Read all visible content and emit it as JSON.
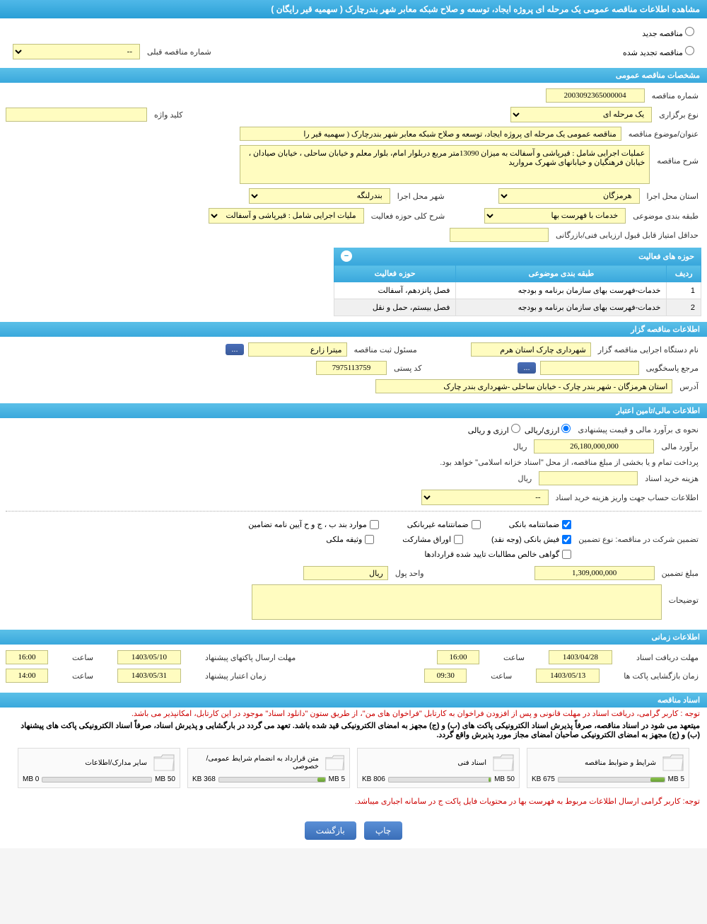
{
  "colors": {
    "header_gradient_top": "#4fb8e8",
    "header_gradient_bottom": "#2a9fd6",
    "yellow_bg": "#fffcc0",
    "yellow_border": "#c0c080",
    "red_text": "#c00",
    "btn_blue_top": "#5a8fd6",
    "btn_blue_bottom": "#3a6eb8"
  },
  "header": {
    "title": "مشاهده اطلاعات مناقصه عمومی یک مرحله ای پروژه ایجاد، توسعه و صلاح شبکه معابر شهر بندرچارک ( سهمیه قیر رایگان )"
  },
  "radio": {
    "new_tender": "مناقصه جدید",
    "renewed_tender": "مناقصه تجدید شده",
    "prev_tender_label": "شماره مناقصه قبلی",
    "prev_tender_value": "--"
  },
  "sections": {
    "general": "مشخصات مناقصه عمومی",
    "holder": "اطلاعات مناقصه گزار",
    "financial": "اطلاعات مالی/تامین اعتبار",
    "timing": "اطلاعات زمانی",
    "documents": "اسناد مناقصه"
  },
  "general": {
    "tender_no_label": "شماره مناقصه",
    "tender_no": "2003092365000004",
    "holding_type_label": "نوع برگزاری",
    "holding_type": "یک مرحله ای",
    "keyword_label": "کلید واژه",
    "keyword": "",
    "subject_label": "عنوان/موضوع مناقصه",
    "subject": "مناقصه عمومی یک مرحله ای پروژه ایجاد، توسعه و صلاح شبکه معابر شهر بندرچارک ( سهمیه قیر را",
    "desc_label": "شرح مناقصه",
    "desc": "عملیات اجرایی شامل : قیرپاشی و آسفالت به میزان 13090متر مربع دربلوار امام، بلوار معلم و خیابان ساحلی ، خیابان صیادان ، خیابان فرهنگیان و خیابانهای شهرک مروارید",
    "province_label": "استان محل اجرا",
    "province": "هرمزگان",
    "city_label": "شهر محل اجرا",
    "city": "بندرلنگه",
    "category_label": "طبقه بندی موضوعی",
    "category": "خدمات با فهرست بها",
    "activity_desc_label": "شرح کلی حوزه فعالیت",
    "activity_desc": "ملیات اجرایی شامل : قیرپاشی و آسفالت به",
    "min_score_label": "حداقل امتیاز قابل قبول ارزیابی فنی/بازرگانی",
    "min_score": ""
  },
  "activity_table": {
    "title": "حوزه های فعالیت",
    "columns": [
      "ردیف",
      "طبقه بندی موضوعی",
      "حوزه فعالیت"
    ],
    "rows": [
      [
        "1",
        "خدمات-فهرست بهای سازمان برنامه و بودجه",
        "فصل پانزدهم، آسفالت"
      ],
      [
        "2",
        "خدمات-فهرست بهای سازمان برنامه و بودجه",
        "فصل بیستم، حمل و نقل"
      ]
    ]
  },
  "holder": {
    "org_label": "نام دستگاه اجرایی مناقصه گزار",
    "org": "شهرداری چارک استان هرم",
    "registrar_label": "مسئول ثبت مناقصه",
    "registrar": "میترا زارع",
    "more_btn": "...",
    "response_label": "مرجع پاسخگویی",
    "response": "",
    "btn_dots": "...",
    "postal_label": "کد پستی",
    "postal": "7975113759",
    "address_label": "آدرس",
    "address": "استان هرمزگان - شهر بندر چارک - خیابان ساحلی -شهرداری بندر چارک"
  },
  "financial": {
    "estimate_method_label": "نحوه ی برآورد مالی و قیمت پیشنهادی",
    "currency_radio1": "ارزی/ریالی",
    "currency_radio2": "ارزی و ریالی",
    "estimate_label": "برآورد مالی",
    "estimate_value": "26,180,000,000",
    "unit_rial": "ریال",
    "payment_note": "پرداخت تمام و یا بخشی از مبلغ مناقصه، از محل \"اسناد خزانه اسلامی\" خواهد بود.",
    "doc_cost_label": "هزینه خرید اسناد",
    "doc_cost": "",
    "account_label": "اطلاعات حساب جهت واریز هزینه خرید اسناد",
    "account_value": "--",
    "guarantee_label": "تضمین شرکت در مناقصه:    نوع تضمین",
    "cb_bank_guarantee": "ضمانتنامه بانکی",
    "cb_nonbank_guarantee": "ضمانتنامه غیربانکی",
    "cb_bylaw": "موارد بند ب ، ج و ح آیین نامه تضامین",
    "cb_cash": "فیش بانکی (وجه نقد)",
    "cb_bonds": "اوراق مشارکت",
    "cb_property": "وثیقه ملکی",
    "cb_receivables": "گواهی خالص مطالبات تایید شده قراردادها",
    "guarantee_amount_label": "مبلغ تضمین",
    "guarantee_amount": "1,309,000,000",
    "currency_unit_label": "واحد پول",
    "currency_unit": "ریال",
    "notes_label": "توضیحات",
    "notes": ""
  },
  "timing": {
    "doc_receive_label": "مهلت دریافت اسناد",
    "doc_receive_date": "1403/04/28",
    "time_label": "ساعت",
    "doc_receive_time": "16:00",
    "bid_send_label": "مهلت ارسال پاکتهای پیشنهاد",
    "bid_send_date": "1403/05/10",
    "bid_send_time": "16:00",
    "open_label": "زمان بازگشایی پاکت ها",
    "open_date": "1403/05/13",
    "open_time": "09:30",
    "validity_label": "زمان اعتبار پیشنهاد",
    "validity_date": "1403/05/31",
    "validity_time": "14:00"
  },
  "documents": {
    "note1": "توجه : کاربر گرامی، دریافت اسناد در مهلت قانونی و پس از افزودن فراخوان به کارتابل \"فراخوان های من\"، از طریق ستون \"دانلود اسناد\" موجود در این کارتابل، امکانپذیر می باشد.",
    "note2": "میتعهد می شود در اسناد مناقصه، صرفاً پذیرش اسناد الکترونیکی پاکت های (ب) و (ج) مجهز به امضای الکترونیکی قید شده باشد. تعهد می گردد در بارگشایی و پذیرش اسناد، صرفاً اسناد الکترونیکی پاکت های پیشنهاد (ب) و (ج) مجهز به امضای الکترونیکی صاحبان امضای مجاز مورد پذیرش واقع گردد.",
    "items": [
      {
        "title": "شرایط و ضوابط مناقصه",
        "used": "675 KB",
        "total": "5 MB",
        "pct": 13
      },
      {
        "title": "اسناد فنی",
        "used": "806 KB",
        "total": "50 MB",
        "pct": 2
      },
      {
        "title": "متن قرارداد به انضمام شرایط عمومی/خصوصی",
        "used": "368 KB",
        "total": "5 MB",
        "pct": 7
      },
      {
        "title": "سایر مدارک/اطلاعات",
        "used": "0 MB",
        "total": "50 MB",
        "pct": 0
      }
    ],
    "note3": "توجه: کاربر گرامی ارسال اطلاعات مربوط به فهرست بها در محتویات فایل پاکت ج در سامانه اجباری میباشد."
  },
  "buttons": {
    "print": "چاپ",
    "back": "بازگشت"
  }
}
